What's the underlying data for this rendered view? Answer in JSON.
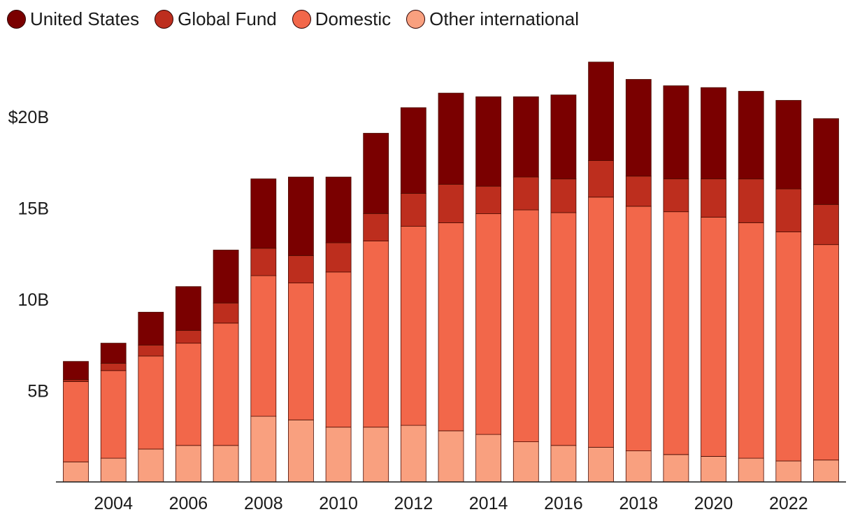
{
  "chart_data": {
    "type": "bar",
    "stacked": true,
    "title": "",
    "xlabel": "",
    "ylabel": "",
    "ylim": [
      0,
      23
    ],
    "y_ticks": [
      {
        "value": 5,
        "label": "5B"
      },
      {
        "value": 10,
        "label": "10B"
      },
      {
        "value": 15,
        "label": "15B"
      },
      {
        "value": 20,
        "label": "$20B"
      }
    ],
    "x": [
      2003,
      2004,
      2005,
      2006,
      2007,
      2008,
      2009,
      2010,
      2011,
      2012,
      2013,
      2014,
      2015,
      2016,
      2017,
      2018,
      2019,
      2020,
      2021,
      2022,
      2023
    ],
    "x_tick_labels": [
      "2004",
      "2006",
      "2008",
      "2010",
      "2012",
      "2014",
      "2016",
      "2018",
      "2020",
      "2022"
    ],
    "legend_position": "top-left",
    "grid": false,
    "series": [
      {
        "name": "Other international",
        "color": "#F9A07F",
        "values": [
          1.1,
          1.3,
          1.8,
          2.0,
          2.0,
          3.6,
          3.4,
          3.0,
          3.0,
          3.1,
          2.8,
          2.6,
          2.2,
          2.0,
          1.9,
          1.7,
          1.5,
          1.4,
          1.3,
          1.15,
          1.2
        ]
      },
      {
        "name": "Domestic",
        "color": "#F2674A",
        "values": [
          4.4,
          4.8,
          5.1,
          5.6,
          6.7,
          7.7,
          7.5,
          8.5,
          10.2,
          10.9,
          11.4,
          12.1,
          12.7,
          12.75,
          13.7,
          13.4,
          13.3,
          13.1,
          12.9,
          12.55,
          11.8
        ]
      },
      {
        "name": "Global Fund",
        "color": "#BD2E1E",
        "values": [
          0.1,
          0.4,
          0.6,
          0.7,
          1.1,
          1.5,
          1.5,
          1.6,
          1.5,
          1.8,
          2.1,
          1.5,
          1.8,
          1.85,
          2.0,
          1.65,
          1.8,
          2.1,
          2.4,
          2.35,
          2.2
        ]
      },
      {
        "name": "United States",
        "color": "#7A0000",
        "values": [
          1.0,
          1.1,
          1.8,
          2.4,
          2.9,
          3.8,
          4.3,
          3.6,
          4.4,
          4.7,
          5.0,
          4.9,
          4.4,
          4.6,
          5.4,
          5.3,
          5.1,
          5.0,
          4.8,
          4.85,
          4.7
        ]
      }
    ]
  },
  "legend": [
    {
      "label": "United States",
      "color": "#7A0000"
    },
    {
      "label": "Global Fund",
      "color": "#BD2E1E"
    },
    {
      "label": "Domestic",
      "color": "#F2674A"
    },
    {
      "label": "Other international",
      "color": "#F9A07F"
    }
  ]
}
